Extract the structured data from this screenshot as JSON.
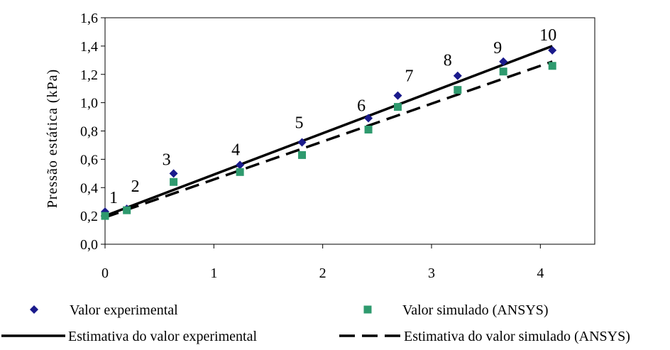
{
  "chart_data": {
    "type": "scatter",
    "title": "",
    "xlabel": "",
    "ylabel": "Pressão estática (kPa)",
    "xlim": [
      0,
      4.5
    ],
    "ylim": [
      0.0,
      1.6
    ],
    "x_ticks": [
      "0",
      "1",
      "2",
      "3",
      "4"
    ],
    "y_ticks": [
      "0,0",
      "0,2",
      "0,4",
      "0,6",
      "0,8",
      "1,0",
      "1,2",
      "1,4",
      "1,6"
    ],
    "grid": false,
    "point_labels": [
      "1",
      "2",
      "3",
      "4",
      "5",
      "6",
      "7",
      "8",
      "9",
      "10"
    ],
    "series": [
      {
        "name": "Valor experimental",
        "kind": "scatter",
        "marker": "diamond",
        "color": "#1a1a8c",
        "x": [
          0.0,
          0.2,
          0.63,
          1.24,
          1.81,
          2.42,
          2.69,
          3.24,
          3.66,
          4.11
        ],
        "y": [
          0.23,
          0.25,
          0.5,
          0.56,
          0.72,
          0.89,
          1.05,
          1.19,
          1.29,
          1.37
        ]
      },
      {
        "name": "Valor simulado (ANSYS)",
        "kind": "scatter",
        "marker": "square",
        "color": "#2e9a6e",
        "x": [
          0.0,
          0.2,
          0.63,
          1.24,
          1.81,
          2.42,
          2.69,
          3.24,
          3.66,
          4.11
        ],
        "y": [
          0.2,
          0.24,
          0.44,
          0.51,
          0.63,
          0.81,
          0.97,
          1.09,
          1.22,
          1.26
        ]
      },
      {
        "name": "Estimativa do valor experimental",
        "kind": "line",
        "dash": "solid",
        "color": "#000000",
        "x": [
          0.0,
          4.11
        ],
        "y": [
          0.2,
          1.4
        ]
      },
      {
        "name": "Estimativa do valor simulado (ANSYS)",
        "kind": "line",
        "dash": "dashed",
        "color": "#000000",
        "x": [
          0.0,
          4.11
        ],
        "y": [
          0.19,
          1.29
        ]
      }
    ],
    "legend_position": "bottom"
  }
}
